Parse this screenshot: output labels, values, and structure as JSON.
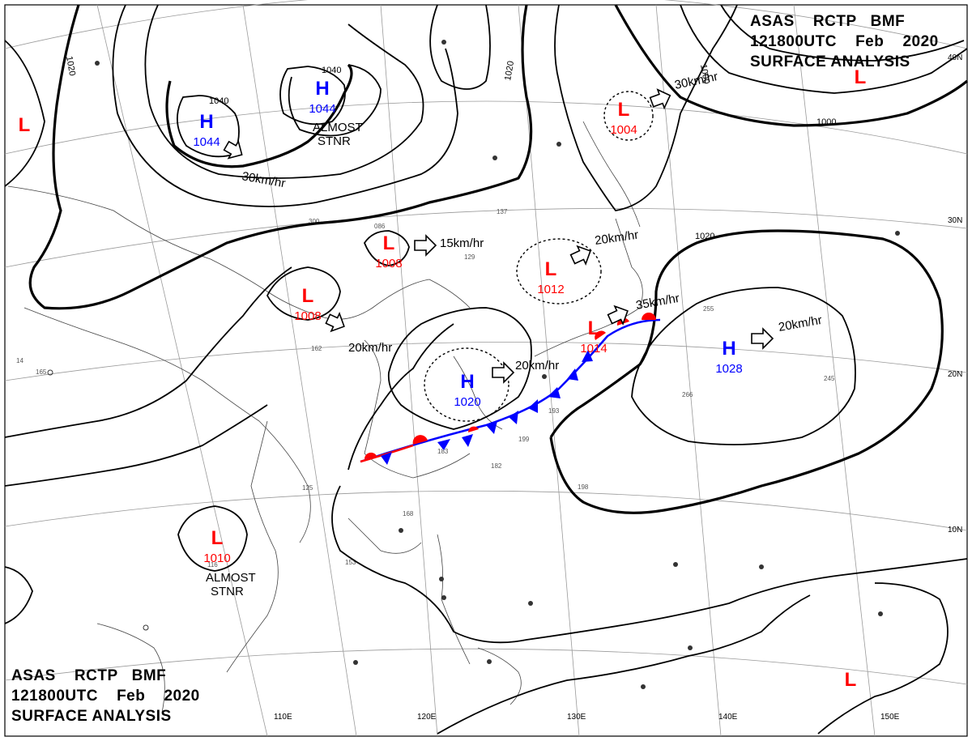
{
  "header": {
    "line1": "ASAS    RCTP   BMF",
    "line2": "121800UTC    Feb    2020",
    "line3": "SURFACE ANALYSIS"
  },
  "colors": {
    "high": "#0000ff",
    "low": "#ff0000",
    "isobar": "#000000",
    "grid": "#9a9a9a",
    "cold_front": "#0000ff",
    "warm_front": "#ff0000"
  },
  "pressure_systems": [
    {
      "type": "H",
      "value": "1044",
      "color": "#0000ff"
    },
    {
      "type": "H",
      "value": "1044",
      "color": "#0000ff"
    },
    {
      "type": "L",
      "value": "1004",
      "color": "#ff0000"
    },
    {
      "type": "L",
      "value": "1008",
      "color": "#ff0000"
    },
    {
      "type": "L",
      "value": "1008",
      "color": "#ff0000"
    },
    {
      "type": "L",
      "value": "1012",
      "color": "#ff0000"
    },
    {
      "type": "H",
      "value": "1020",
      "color": "#0000ff"
    },
    {
      "type": "L",
      "value": "1014",
      "color": "#ff0000"
    },
    {
      "type": "H",
      "value": "1028",
      "color": "#0000ff"
    },
    {
      "type": "L",
      "value": "1010",
      "color": "#ff0000"
    },
    {
      "type": "L",
      "value": "",
      "color": "#ff0000"
    },
    {
      "type": "L",
      "value": "",
      "color": "#ff0000"
    },
    {
      "type": "L",
      "value": "",
      "color": "#ff0000"
    }
  ],
  "movement_labels": [
    "30km/hr",
    "30km/hr",
    "15km/hr",
    "20km/hr",
    "20km/hr",
    "20km/hr",
    "35km/hr",
    "20km/hr"
  ],
  "stationary_labels": [
    "ALMOST\nSTNR",
    "ALMOST\nSTNR"
  ],
  "isobar_labels": [
    "1020",
    "1040",
    "1040",
    "1020",
    "1000",
    "1000",
    "1020"
  ],
  "lat_labels": [
    "40N",
    "30N",
    "20N",
    "10N"
  ],
  "lon_labels": [
    "110E",
    "120E",
    "130E",
    "140E",
    "150E"
  ]
}
